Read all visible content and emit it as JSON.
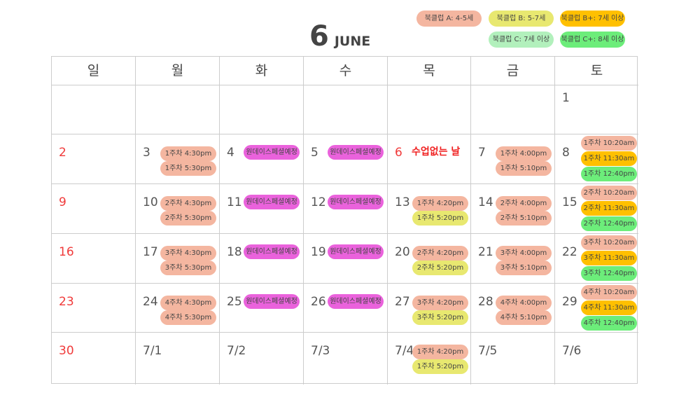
{
  "header": {
    "day_number": "6",
    "month": "JUNE"
  },
  "colors": {
    "A": "#f4b6a0",
    "B": "#e8e870",
    "Bplus": "#ffc000",
    "C": "#b2f0bc",
    "Cplus": "#6ced7a",
    "oneday": "#ea62dc",
    "holiday_red": "#f03a3a"
  },
  "legend": [
    {
      "label": "북클럽 A: 4-5세",
      "key": "A"
    },
    {
      "label": "북클럽 B: 5-7세",
      "key": "B"
    },
    {
      "label": "북클럽 B+: 7세 이상",
      "key": "Bplus"
    },
    {
      "label": "북클럽 C: 7세 이상",
      "key": "C"
    },
    {
      "label": "북클럽 C+: 8세 이상",
      "key": "Cplus"
    }
  ],
  "weekdays": [
    "일",
    "월",
    "화",
    "수",
    "목",
    "금",
    "토"
  ],
  "weeks": [
    [
      {
        "label": ""
      },
      {
        "label": ""
      },
      {
        "label": ""
      },
      {
        "label": ""
      },
      {
        "label": ""
      },
      {
        "label": ""
      },
      {
        "label": "1"
      }
    ],
    [
      {
        "label": "2",
        "red": true
      },
      {
        "label": "3",
        "events": [
          {
            "text": "1주차 4:30pm",
            "key": "A"
          },
          {
            "text": "1주차 5:30pm",
            "key": "A"
          }
        ]
      },
      {
        "label": "4",
        "events": [
          {
            "text": "원데이스페셜예정",
            "key": "oneday"
          }
        ]
      },
      {
        "label": "5",
        "events": [
          {
            "text": "원데이스페셜예정",
            "key": "oneday"
          }
        ]
      },
      {
        "label": "6",
        "red": true,
        "note": "수업없는 날"
      },
      {
        "label": "7",
        "events": [
          {
            "text": "1주차 4:00pm",
            "key": "A"
          },
          {
            "text": "1주차 5:10pm",
            "key": "A"
          }
        ]
      },
      {
        "label": "8",
        "events": [
          {
            "text": "1주차 10:20am",
            "key": "A"
          },
          {
            "text": "1주차 11:30am",
            "key": "Bplus"
          },
          {
            "text": "1주차 12:40pm",
            "key": "Cplus"
          }
        ]
      }
    ],
    [
      {
        "label": "9",
        "red": true
      },
      {
        "label": "10",
        "events": [
          {
            "text": "2주차 4:30pm",
            "key": "A"
          },
          {
            "text": "2주차 5:30pm",
            "key": "A"
          }
        ]
      },
      {
        "label": "11",
        "events": [
          {
            "text": "원데이스페셜예정",
            "key": "oneday"
          }
        ]
      },
      {
        "label": "12",
        "events": [
          {
            "text": "원데이스페셜예정",
            "key": "oneday"
          }
        ]
      },
      {
        "label": "13",
        "events": [
          {
            "text": "1주차 4:20pm",
            "key": "A"
          },
          {
            "text": "1주차 5:20pm",
            "key": "B"
          }
        ]
      },
      {
        "label": "14",
        "events": [
          {
            "text": "2주차 4:00pm",
            "key": "A"
          },
          {
            "text": "2주차 5:10pm",
            "key": "A"
          }
        ]
      },
      {
        "label": "15",
        "events": [
          {
            "text": "2주차 10:20am",
            "key": "A"
          },
          {
            "text": "2주차 11:30am",
            "key": "Bplus"
          },
          {
            "text": "2주차 12:40pm",
            "key": "Cplus"
          }
        ]
      }
    ],
    [
      {
        "label": "16",
        "red": true
      },
      {
        "label": "17",
        "events": [
          {
            "text": "3주차 4:30pm",
            "key": "A"
          },
          {
            "text": "3주차 5:30pm",
            "key": "A"
          }
        ]
      },
      {
        "label": "18",
        "events": [
          {
            "text": "원데이스페셜예정",
            "key": "oneday"
          }
        ]
      },
      {
        "label": "19",
        "events": [
          {
            "text": "원데이스페셜예정",
            "key": "oneday"
          }
        ]
      },
      {
        "label": "20",
        "events": [
          {
            "text": "2주차 4:20pm",
            "key": "A"
          },
          {
            "text": "2주차 5:20pm",
            "key": "B"
          }
        ]
      },
      {
        "label": "21",
        "events": [
          {
            "text": "3주차 4:00pm",
            "key": "A"
          },
          {
            "text": "3주차 5:10pm",
            "key": "A"
          }
        ]
      },
      {
        "label": "22",
        "events": [
          {
            "text": "3주차 10:20am",
            "key": "A"
          },
          {
            "text": "3주차 11:30am",
            "key": "Bplus"
          },
          {
            "text": "3주차 12:40pm",
            "key": "Cplus"
          }
        ]
      }
    ],
    [
      {
        "label": "23",
        "red": true
      },
      {
        "label": "24",
        "events": [
          {
            "text": "4주차 4:30pm",
            "key": "A"
          },
          {
            "text": "4주차 5:30pm",
            "key": "A"
          }
        ]
      },
      {
        "label": "25",
        "events": [
          {
            "text": "원데이스페셜예정",
            "key": "oneday"
          }
        ]
      },
      {
        "label": "26",
        "events": [
          {
            "text": "원데이스페셜예정",
            "key": "oneday"
          }
        ]
      },
      {
        "label": "27",
        "events": [
          {
            "text": "3주차 4:20pm",
            "key": "A"
          },
          {
            "text": "3주차 5:20pm",
            "key": "B"
          }
        ]
      },
      {
        "label": "28",
        "events": [
          {
            "text": "4주차 4:00pm",
            "key": "A"
          },
          {
            "text": "4주차 5:10pm",
            "key": "A"
          }
        ]
      },
      {
        "label": "29",
        "events": [
          {
            "text": "4주차 10:20am",
            "key": "A"
          },
          {
            "text": "4주차 11:30am",
            "key": "Bplus"
          },
          {
            "text": "4주차 12:40pm",
            "key": "Cplus"
          }
        ]
      }
    ],
    [
      {
        "label": "30",
        "red": true
      },
      {
        "label": "7/1"
      },
      {
        "label": "7/2"
      },
      {
        "label": "7/3"
      },
      {
        "label": "7/4",
        "events": [
          {
            "text": "1주차 4:20pm",
            "key": "A"
          },
          {
            "text": "1주차 5:20pm",
            "key": "B"
          }
        ]
      },
      {
        "label": "7/5"
      },
      {
        "label": "7/6"
      }
    ]
  ]
}
